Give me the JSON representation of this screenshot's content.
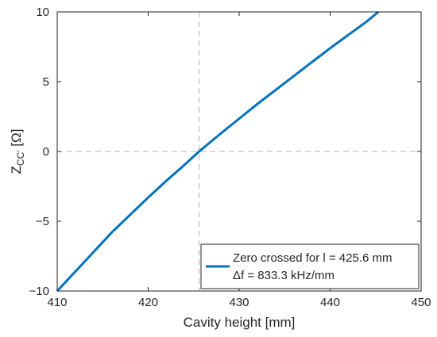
{
  "chart_data": {
    "type": "line",
    "xlabel": "Cavity height [mm]",
    "ylabel": {
      "main": "Z",
      "sub": "CC'",
      "unit": " [Ω]"
    },
    "xlim": [
      410,
      450
    ],
    "ylim": [
      -10,
      10
    ],
    "xticks": [
      410,
      420,
      430,
      440,
      450
    ],
    "yticks": [
      -10,
      -5,
      0,
      5,
      10
    ],
    "grid": false,
    "series": [
      {
        "name": "Zero crossed for l = 425.6 mm",
        "name_line2": "Δf = 833.3 kHz/mm",
        "color": "#0072BD",
        "x": [
          410.0,
          412.0,
          414.0,
          416.0,
          418.0,
          420.0,
          422.0,
          424.0,
          425.6,
          428.0,
          430.0,
          432.0,
          434.0,
          436.0,
          438.0,
          440.0,
          442.0,
          444.0,
          445.3
        ],
        "y": [
          -10.0,
          -8.6,
          -7.2,
          -5.8,
          -4.55,
          -3.3,
          -2.1,
          -0.95,
          0.0,
          1.3,
          2.35,
          3.4,
          4.4,
          5.4,
          6.4,
          7.4,
          8.35,
          9.3,
          10.0
        ]
      }
    ],
    "reference_lines": [
      {
        "orientation": "vertical",
        "value": 425.6,
        "style": "dashed",
        "color": "#b3b3b3"
      },
      {
        "orientation": "horizontal",
        "value": 0,
        "style": "dashed",
        "color": "#b3b3b3"
      }
    ],
    "legend_position": "bottom-right"
  }
}
